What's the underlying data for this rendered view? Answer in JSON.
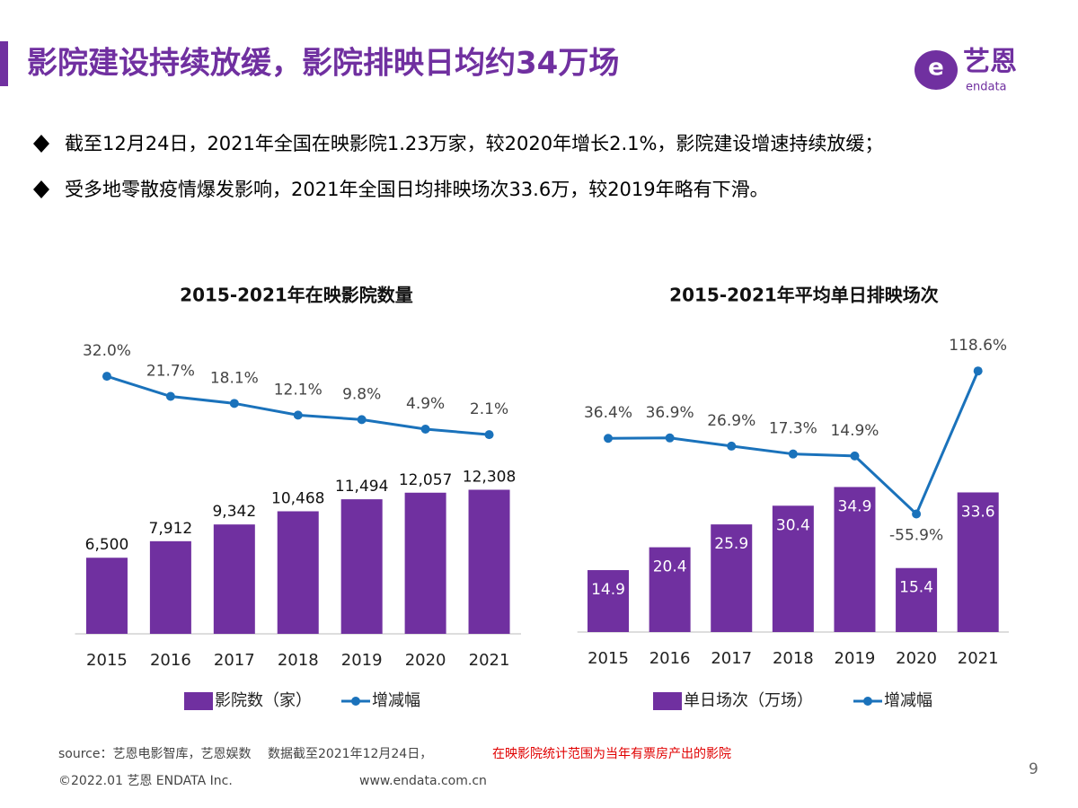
{
  "header": {
    "title": "影院建设持续放缓，影院排映日均约34万场",
    "logo_cn": "艺恩",
    "logo_en": "endata"
  },
  "bullets": [
    "截至12月24日，2021年全国在映影院1.23万家，较2020年增长2.1%，影院建设增速持续放缓；",
    "受多地零散疫情爆发影响，2021年全国日均排映场次33.6万，较2019年略有下滑。"
  ],
  "footer": {
    "source": "source：艺恩电影智库，艺恩娱数　 数据截至2021年12月24日，",
    "source_note": "在映影院统计范围为当年有票房产出的影院",
    "copyright": "©2022.01 艺恩 ENDATA Inc.",
    "website": "www.endata.com.cn",
    "page": "9"
  },
  "chart_data": [
    {
      "type": "combo",
      "title": "2015-2021年在映影院数量",
      "categories": [
        "2015",
        "2016",
        "2017",
        "2018",
        "2019",
        "2020",
        "2021"
      ],
      "ylim": [
        0,
        25000
      ],
      "y2lim": [
        -100,
        50
      ],
      "series": [
        {
          "name": "影院数（家）",
          "type": "bar",
          "color": "#7030a0",
          "values": [
            6500,
            7912,
            9342,
            10468,
            11494,
            12057,
            12308
          ],
          "value_labels": [
            "6,500",
            "7,912",
            "9,342",
            "10,468",
            "11,494",
            "12,057",
            "12,308"
          ]
        },
        {
          "name": "增减幅",
          "type": "line",
          "axis": "y2",
          "color": "#1a72bb",
          "values": [
            32.0,
            21.7,
            18.1,
            12.1,
            9.8,
            4.9,
            2.1
          ],
          "value_labels": [
            "32.0%",
            "21.7%",
            "18.1%",
            "12.1%",
            "9.8%",
            "4.9%",
            "2.1%"
          ]
        }
      ]
    },
    {
      "type": "combo",
      "title": "2015-2021年平均单日排映场次",
      "categories": [
        "2015",
        "2016",
        "2017",
        "2018",
        "2019",
        "2020",
        "2021"
      ],
      "ylim": [
        0,
        70
      ],
      "y2lim": [
        -200,
        155
      ],
      "series": [
        {
          "name": "单日场次（万场）",
          "type": "bar",
          "color": "#7030a0",
          "values": [
            14.9,
            20.4,
            25.9,
            30.4,
            34.9,
            15.4,
            33.6
          ]
        },
        {
          "name": "增减幅",
          "type": "line",
          "axis": "y2",
          "color": "#1a72bb",
          "values": [
            36.4,
            36.9,
            26.9,
            17.3,
            14.9,
            -55.9,
            118.6
          ],
          "value_labels": [
            "36.4%",
            "36.9%",
            "26.9%",
            "17.3%",
            "14.9%",
            "-55.9%",
            "118.6%"
          ]
        }
      ]
    }
  ]
}
